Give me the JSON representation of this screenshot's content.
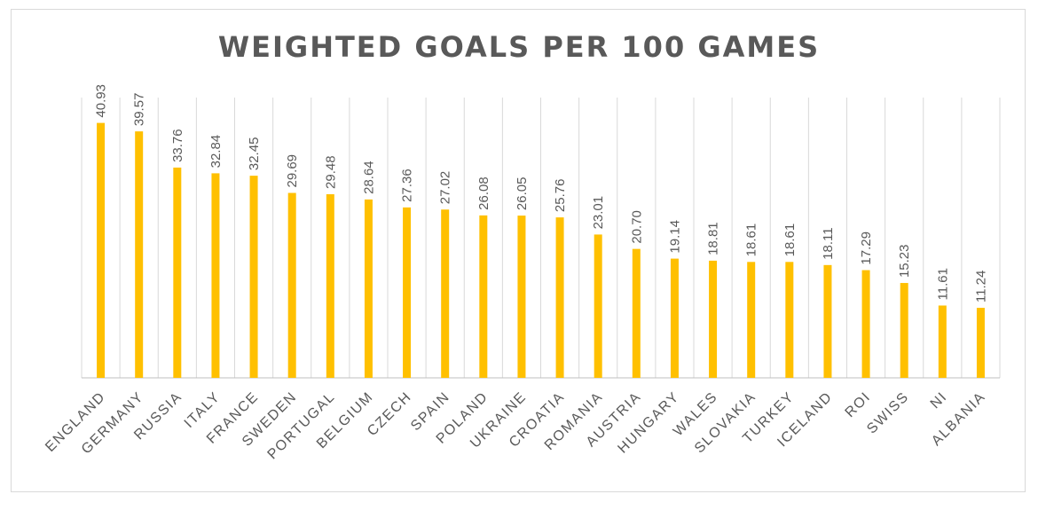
{
  "colors": {
    "bar": "#FFC000",
    "text": "#595959",
    "grid": "#d9d9d9",
    "axis": "#bfbfbf"
  },
  "chart_data": {
    "type": "bar",
    "title": "WEIGHTED GOALS PER 100 GAMES",
    "xlabel": "",
    "ylabel": "",
    "ylim": [
      0,
      45
    ],
    "grid": "vertical",
    "legend": "none",
    "categories": [
      "ENGLAND",
      "GERMANY",
      "RUSSIA",
      "ITALY",
      "FRANCE",
      "SWEDEN",
      "PORTUGAL",
      "BELGIUM",
      "CZECH",
      "SPAIN",
      "POLAND",
      "UKRAINE",
      "CROATIA",
      "ROMANIA",
      "AUSTRIA",
      "HUNGARY",
      "WALES",
      "SLOVAKIA",
      "TURKEY",
      "ICELAND",
      "ROI",
      "SWISS",
      "NI",
      "ALBANIA"
    ],
    "values": [
      40.93,
      39.57,
      33.76,
      32.84,
      32.45,
      29.69,
      29.48,
      28.64,
      27.36,
      27.02,
      26.08,
      26.05,
      25.76,
      23.01,
      20.7,
      19.14,
      18.81,
      18.61,
      18.61,
      18.11,
      17.29,
      15.23,
      11.61,
      11.24
    ],
    "data_labels": [
      "40.93",
      "39.57",
      "33.76",
      "32.84",
      "32.45",
      "29.69",
      "29.48",
      "28.64",
      "27.36",
      "27.02",
      "26.08",
      "26.05",
      "25.76",
      "23.01",
      "20.70",
      "19.14",
      "18.81",
      "18.61",
      "18.61",
      "18.11",
      "17.29",
      "15.23",
      "11.61",
      "11.24"
    ]
  }
}
